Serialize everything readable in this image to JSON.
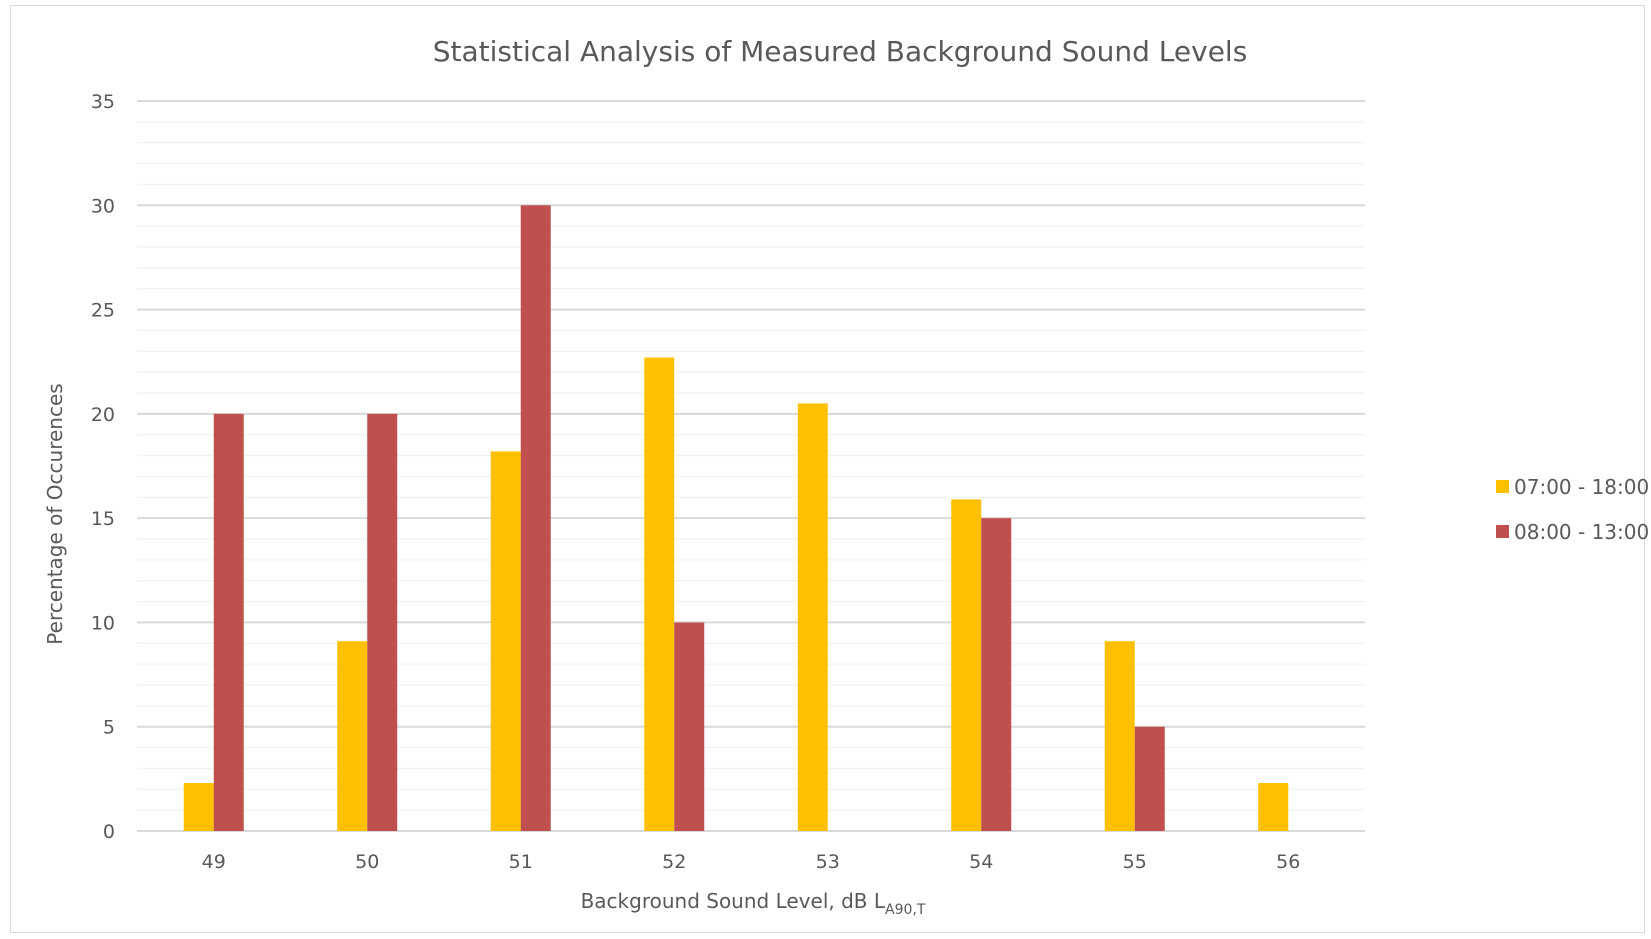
{
  "chart_data": {
    "type": "bar",
    "title": "Statistical Analysis of Measured Background Sound Levels",
    "xlabel": "Background Sound Level, dB L",
    "xlabel_subscript": "A90,T",
    "ylabel": "Percentage of Occurences",
    "categories": [
      "49",
      "50",
      "51",
      "52",
      "53",
      "54",
      "55",
      "56"
    ],
    "ylim": [
      0,
      35
    ],
    "yticks": [
      0,
      5,
      10,
      15,
      20,
      25,
      30,
      35
    ],
    "minor_grid_step": 1,
    "grid": true,
    "legend_position": "right",
    "series": [
      {
        "name": "07:00 - 18:00",
        "color": "#FFC000",
        "values": [
          2.3,
          9.1,
          18.2,
          22.7,
          20.5,
          15.9,
          9.1,
          2.3
        ]
      },
      {
        "name": "08:00 - 13:00",
        "color": "#C0504D",
        "values": [
          20,
          20,
          30,
          10,
          0,
          15,
          5,
          0
        ]
      }
    ]
  }
}
